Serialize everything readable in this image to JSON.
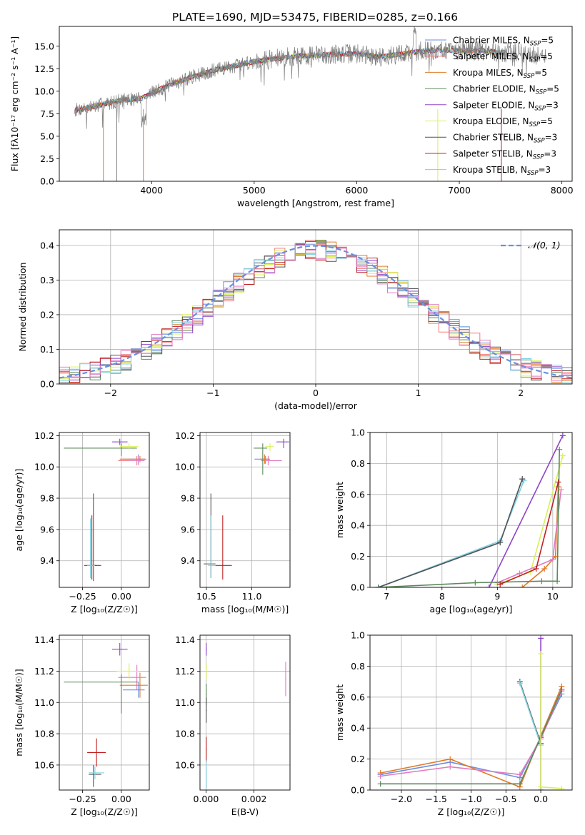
{
  "figure_title": "PLATE=1690, MJD=53475, FIBERID=0285, z=0.166",
  "colors": {
    "Chabrier MILES": "#6a8fe0",
    "Salpeter MILES": "#f47a7a",
    "Kroupa MILES": "#e07b2a",
    "Chabrier ELODIE": "#5c8a5c",
    "Salpeter ELODIE": "#8e44c8",
    "Kroupa ELODIE": "#d8f05a",
    "Chabrier STELIB": "#555555",
    "Salpeter STELIB": "#c02020",
    "Kroupa STELIB": "#80d0e0",
    "Pink": "#e07ac0"
  },
  "chart_data": [
    {
      "id": "spectrum",
      "type": "line",
      "title": "PLATE=1690, MJD=53475, FIBERID=0285, z=0.166",
      "xlabel": "wavelength [Angstrom, rest frame]",
      "ylabel": "Flux [fλ10⁻¹⁷ erg cm⁻² s⁻¹ A⁻¹]",
      "xlim": [
        3100,
        8100
      ],
      "ylim": [
        0,
        17.2
      ],
      "xticks": [
        4000,
        5000,
        6000,
        7000,
        8000
      ],
      "yticks": [
        0.0,
        2.5,
        5.0,
        7.5,
        10.0,
        12.5,
        15.0
      ],
      "grid": false,
      "legend_position": "right",
      "legend": [
        "Chabrier MILES, N_SSP=5",
        "Salpeter MILES, N_SSP=5",
        "Kroupa MILES, N_SSP=5",
        "Chabrier ELODIE, N_SSP=5",
        "Salpeter ELODIE, N_SSP=3",
        "Kroupa ELODIE, N_SSP=5",
        "Chabrier STELIB, N_SSP=3",
        "Salpeter STELIB, N_SSP=3",
        "Kroupa STELIB, N_SSP=3"
      ],
      "data_curve": {
        "x": [
          3250,
          3400,
          3550,
          3700,
          3900,
          4000,
          4200,
          4400,
          4600,
          4800,
          5000,
          5200,
          5400,
          5600,
          5800,
          6000,
          6200,
          6400,
          6600,
          6800,
          7000,
          7200,
          7400,
          7600,
          7800
        ],
        "y": [
          7.9,
          8.2,
          8.6,
          9.0,
          9.2,
          9.8,
          10.8,
          11.6,
          12.3,
          12.8,
          13.3,
          13.6,
          13.9,
          14.0,
          14.1,
          14.2,
          13.8,
          14.1,
          14.4,
          14.6,
          14.5,
          14.5,
          14.3,
          14.2,
          13.9
        ]
      }
    },
    {
      "id": "residuals",
      "type": "histogram",
      "xlabel": "(data-model)/error",
      "ylabel": "Normed distribution",
      "xlim": [
        -2.5,
        2.5
      ],
      "ylim": [
        0,
        0.445
      ],
      "xticks": [
        -2,
        -1,
        0,
        1,
        2
      ],
      "yticks": [
        0.0,
        0.1,
        0.2,
        0.3,
        0.4
      ],
      "grid": true,
      "legend": [
        "𝒩(0, 1)"
      ],
      "legend_position": "top-right"
    },
    {
      "id": "age_vs_Z",
      "type": "scatter",
      "xlabel": "Z [log₁₀(Z/Z☉)]",
      "ylabel": "age  [log₁₀(age/yr)]",
      "xlim": [
        -0.4,
        0.18
      ],
      "ylim": [
        9.23,
        10.22
      ],
      "xticks": [
        -0.25,
        0.0
      ],
      "yticks": [
        9.4,
        9.6,
        9.8,
        10.0,
        10.2
      ],
      "grid": true
    },
    {
      "id": "age_vs_mass",
      "type": "scatter",
      "xlabel": "mass [log₁₀(M/M☉)]",
      "xlim": [
        10.43,
        11.42
      ],
      "ylim": [
        9.23,
        10.22
      ],
      "xticks": [
        10.5,
        11.0
      ],
      "yticks": [
        9.4,
        9.6,
        9.8,
        10.0,
        10.2
      ],
      "grid": true
    },
    {
      "id": "massweight_vs_age",
      "type": "line",
      "xlabel": "age  [log₁₀(age/yr)]",
      "ylabel": "mass weight",
      "xlim": [
        6.7,
        10.35
      ],
      "ylim": [
        0,
        1.0
      ],
      "xticks": [
        7,
        8,
        9,
        10
      ],
      "yticks": [
        0.0,
        0.2,
        0.4,
        0.6,
        0.8,
        1.0
      ],
      "grid": true
    },
    {
      "id": "mass_vs_Z",
      "type": "scatter",
      "xlabel": "Z [log₁₀(Z/Z☉)]",
      "ylabel": "mass [log₁₀(M/M☉)]",
      "xlim": [
        -0.4,
        0.18
      ],
      "ylim": [
        10.44,
        11.43
      ],
      "xticks": [
        -0.25,
        0.0
      ],
      "yticks": [
        10.6,
        10.8,
        11.0,
        11.2,
        11.4
      ],
      "grid": true
    },
    {
      "id": "mass_vs_ebv",
      "type": "scatter",
      "xlabel": "E(B-V)",
      "xlim": [
        -0.00025,
        0.0035
      ],
      "ylim": [
        10.44,
        11.43
      ],
      "xticks": [
        0.0,
        0.002
      ],
      "yticks": [
        10.6,
        10.8,
        11.0,
        11.2,
        11.4
      ],
      "grid": true
    },
    {
      "id": "massweight_vs_Z",
      "type": "line",
      "xlabel": "Z [log₁₀(Z/Z☉)]",
      "ylabel": "mass weight",
      "xlim": [
        -2.45,
        0.45
      ],
      "ylim": [
        0,
        1.0
      ],
      "xticks": [
        -2.0,
        -1.5,
        -1.0,
        -0.5,
        0.0
      ],
      "yticks": [
        0.0,
        0.2,
        0.4,
        0.6,
        0.8,
        1.0
      ],
      "grid": true
    }
  ]
}
